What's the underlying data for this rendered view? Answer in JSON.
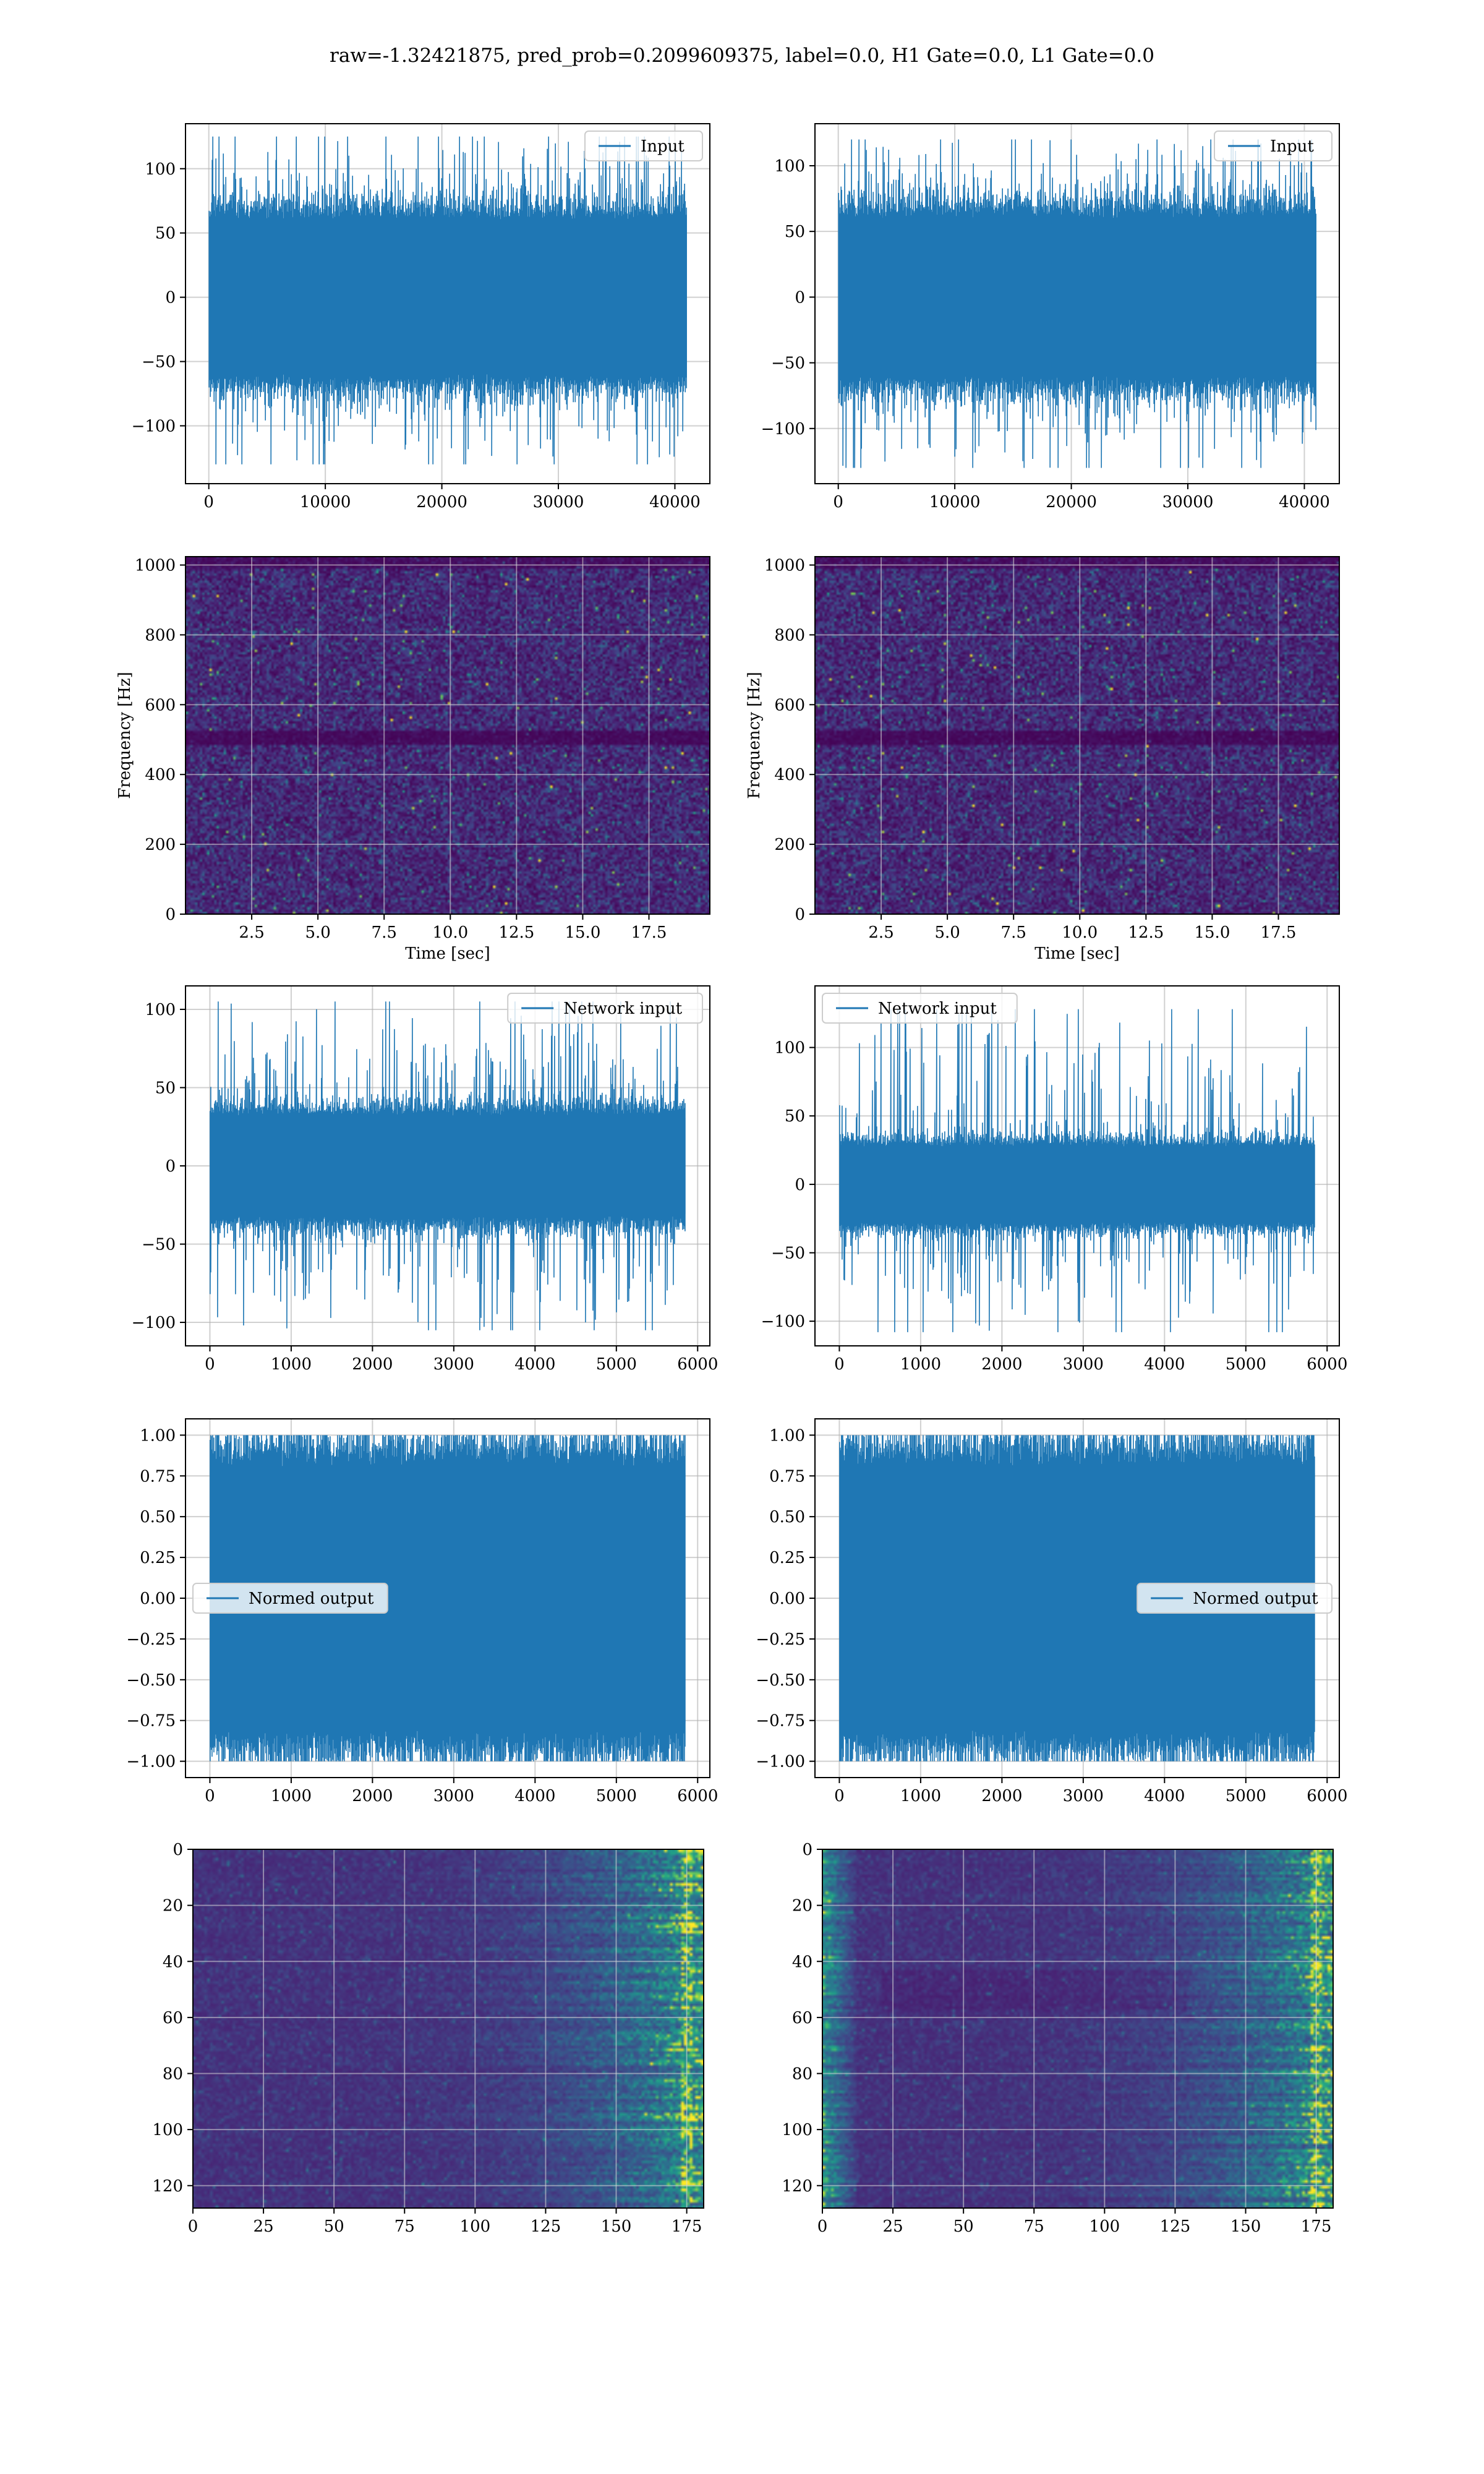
{
  "figure": {
    "suptitle": "raw=-1.32421875, pred_prob=0.2099609375, label=0.0, H1 Gate=0.0, L1 Gate=0.0"
  },
  "colors": {
    "line": "#1f77b4",
    "grid": "#b0b0b0",
    "viridis_dark": "#440154",
    "viridis_mid": "#3b528b",
    "viridis_teal": "#21918c",
    "viridis_green": "#5ec962",
    "viridis_yellow": "#fde725"
  },
  "chart_data": [
    {
      "id": "ts-input-h1",
      "type": "line",
      "panel": "row1-left",
      "title": "",
      "xlabel": "",
      "ylabel": "",
      "series": [
        {
          "name": "Input",
          "kind": "noise",
          "n": 41000,
          "amplitude_core": 65,
          "peak_max": 125,
          "peak_min": -130
        }
      ],
      "xlim": [
        -2000,
        43000
      ],
      "ylim": [
        -145,
        135
      ],
      "xticks": [
        0,
        10000,
        20000,
        30000,
        40000
      ],
      "yticks": [
        -100,
        -50,
        0,
        50,
        100
      ],
      "legend": "upper right",
      "grid": true
    },
    {
      "id": "ts-input-l1",
      "type": "line",
      "panel": "row1-right",
      "title": "",
      "xlabel": "",
      "ylabel": "",
      "series": [
        {
          "name": "Input",
          "kind": "noise",
          "n": 41000,
          "amplitude_core": 65,
          "peak_max": 120,
          "peak_min": -130
        }
      ],
      "xlim": [
        -2000,
        43000
      ],
      "ylim": [
        -142,
        132
      ],
      "xticks": [
        0,
        10000,
        20000,
        30000,
        40000
      ],
      "yticks": [
        -100,
        -50,
        0,
        50,
        100
      ],
      "legend": "upper right",
      "grid": true
    },
    {
      "id": "spec-h1",
      "type": "heatmap",
      "panel": "row2-left",
      "title": "",
      "xlabel": "Time [sec]",
      "ylabel": "Frequency [Hz]",
      "xlim": [
        0,
        19.8
      ],
      "ylim": [
        0,
        1024
      ],
      "xticks": [
        2.5,
        5.0,
        7.5,
        10.0,
        12.5,
        15.0,
        17.5
      ],
      "yticks": [
        0,
        200,
        400,
        600,
        800,
        1000
      ],
      "colormap": "viridis",
      "grid": true,
      "dark_band_hz": [
        490,
        530
      ]
    },
    {
      "id": "spec-l1",
      "type": "heatmap",
      "panel": "row2-right",
      "title": "",
      "xlabel": "Time [sec]",
      "ylabel": "Frequency [Hz]",
      "xlim": [
        0,
        19.8
      ],
      "ylim": [
        0,
        1024
      ],
      "xticks": [
        2.5,
        5.0,
        7.5,
        10.0,
        12.5,
        15.0,
        17.5
      ],
      "yticks": [
        0,
        200,
        400,
        600,
        800,
        1000
      ],
      "colormap": "viridis",
      "grid": true,
      "dark_band_hz": [
        490,
        530
      ]
    },
    {
      "id": "ts-network-h1",
      "type": "line",
      "panel": "row3-left",
      "title": "",
      "xlabel": "",
      "ylabel": "",
      "series": [
        {
          "name": "Network input",
          "kind": "noise",
          "n": 5850,
          "amplitude_core": 35,
          "peak_max": 105,
          "peak_min": -105
        }
      ],
      "xlim": [
        -300,
        6150
      ],
      "ylim": [
        -115,
        115
      ],
      "xticks": [
        0,
        1000,
        2000,
        3000,
        4000,
        5000,
        6000
      ],
      "yticks": [
        -100,
        -50,
        0,
        50,
        100
      ],
      "legend": "upper right",
      "grid": true
    },
    {
      "id": "ts-network-l1",
      "type": "line",
      "panel": "row3-right",
      "title": "",
      "xlabel": "",
      "ylabel": "",
      "series": [
        {
          "name": "Network input",
          "kind": "noise",
          "n": 5850,
          "amplitude_core": 30,
          "peak_max": 128,
          "peak_min": -108
        }
      ],
      "xlim": [
        -300,
        6150
      ],
      "ylim": [
        -118,
        145
      ],
      "xticks": [
        0,
        1000,
        2000,
        3000,
        4000,
        5000,
        6000
      ],
      "yticks": [
        -100,
        -50,
        0,
        50,
        100
      ],
      "legend": "upper left",
      "grid": true
    },
    {
      "id": "ts-normed-h1",
      "type": "line",
      "panel": "row4-left",
      "title": "",
      "xlabel": "",
      "ylabel": "",
      "series": [
        {
          "name": "Normed output",
          "kind": "noise",
          "n": 5850,
          "amplitude_core": 0.88,
          "peak_max": 1.0,
          "peak_min": -1.0
        }
      ],
      "xlim": [
        -300,
        6150
      ],
      "ylim": [
        -1.1,
        1.1
      ],
      "xticks": [
        0,
        1000,
        2000,
        3000,
        4000,
        5000,
        6000
      ],
      "yticks": [
        -1.0,
        -0.75,
        -0.5,
        -0.25,
        0.0,
        0.25,
        0.5,
        0.75,
        1.0
      ],
      "legend": "center left",
      "grid": true
    },
    {
      "id": "ts-normed-l1",
      "type": "line",
      "panel": "row4-right",
      "title": "",
      "xlabel": "",
      "ylabel": "",
      "series": [
        {
          "name": "Normed output",
          "kind": "noise",
          "n": 5850,
          "amplitude_core": 0.88,
          "peak_max": 1.0,
          "peak_min": -1.0
        }
      ],
      "xlim": [
        -300,
        6150
      ],
      "ylim": [
        -1.1,
        1.1
      ],
      "xticks": [
        0,
        1000,
        2000,
        3000,
        4000,
        5000,
        6000
      ],
      "yticks": [
        -1.0,
        -0.75,
        -0.5,
        -0.25,
        0.0,
        0.25,
        0.5,
        0.75,
        1.0
      ],
      "legend": "center right",
      "grid": true
    },
    {
      "id": "feat-h1",
      "type": "heatmap",
      "panel": "row5-left",
      "title": "",
      "xlabel": "",
      "ylabel": "",
      "xlim": [
        0,
        181
      ],
      "ylim": [
        128,
        0
      ],
      "xticks": [
        0,
        25,
        50,
        75,
        100,
        125,
        150,
        175
      ],
      "yticks": [
        0,
        20,
        40,
        60,
        80,
        100,
        120
      ],
      "colormap": "viridis",
      "grid": true
    },
    {
      "id": "feat-l1",
      "type": "heatmap",
      "panel": "row5-right",
      "title": "",
      "xlabel": "",
      "ylabel": "",
      "xlim": [
        0,
        181
      ],
      "ylim": [
        128,
        0
      ],
      "xticks": [
        0,
        25,
        50,
        75,
        100,
        125,
        150,
        175
      ],
      "yticks": [
        0,
        20,
        40,
        60,
        80,
        100,
        120
      ],
      "colormap": "viridis",
      "grid": true
    }
  ]
}
